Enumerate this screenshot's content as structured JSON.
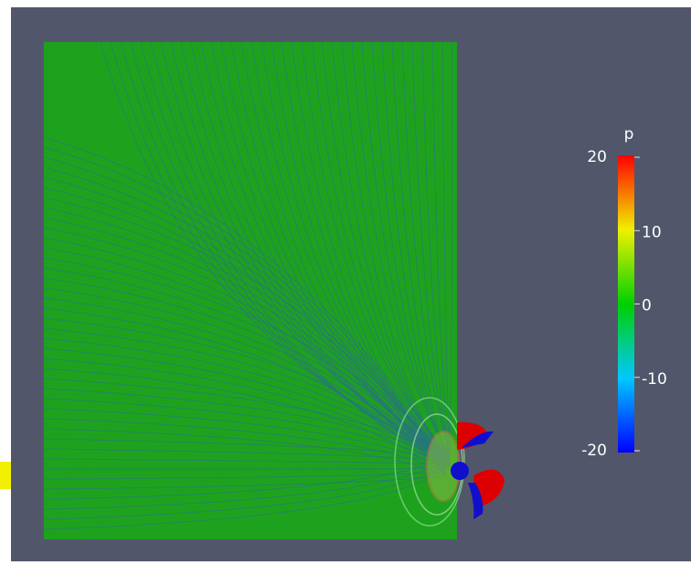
{
  "colorbar": {
    "title": "p",
    "range": [
      -20,
      20
    ],
    "ticks": [
      20,
      10,
      0,
      -10,
      -20
    ]
  }
}
